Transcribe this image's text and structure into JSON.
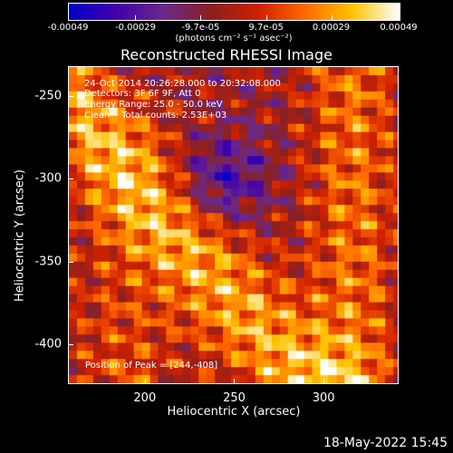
{
  "chart_data": {
    "type": "heatmap",
    "title": "Reconstructed RHESSI Image",
    "xlabel": "Heliocentric X (arcsec)",
    "ylabel": "Heliocentric Y (arcsec)",
    "xlim": [
      157,
      342
    ],
    "ylim": [
      -424,
      -232
    ],
    "x_ticks": [
      "200",
      "250",
      "300"
    ],
    "x_tick_values": [
      200,
      250,
      300
    ],
    "y_ticks": [
      "-250",
      "-300",
      "-350",
      "-400"
    ],
    "y_tick_values": [
      -250,
      -300,
      -350,
      -400
    ],
    "colorbar": {
      "ticks": [
        "-0.00049",
        "-0.00029",
        "-9.7e-05",
        "9.7e-05",
        "0.00029",
        "0.00049"
      ],
      "tick_values": [
        -0.00049,
        -0.00029,
        -9.7e-05,
        9.7e-05,
        0.00029,
        0.00049
      ],
      "range": [
        -0.00049,
        0.00049
      ],
      "units": "(photons cm⁻² s⁻¹ asec⁻²)",
      "colors": [
        "#0000cc",
        "#4400aa",
        "#6a2a8a",
        "#8a2020",
        "#d02000",
        "#ff6a00",
        "#ffc400",
        "#ffffff"
      ]
    },
    "annotations": {
      "time": "24-Oct-2014 20:26:28.000 to 20:32:08.000",
      "detectors": "Detectors: 3F 6F 9F, Att 0",
      "energy": "Energy Range: 25.0 - 50.0 keV",
      "method": "Clean    Total counts: 2.53E+03",
      "peak": "Position of Peak = [244,-408]"
    },
    "peak_position": [
      244,
      -408
    ]
  },
  "footer": {
    "timestamp": "18-May-2022 15:45"
  }
}
